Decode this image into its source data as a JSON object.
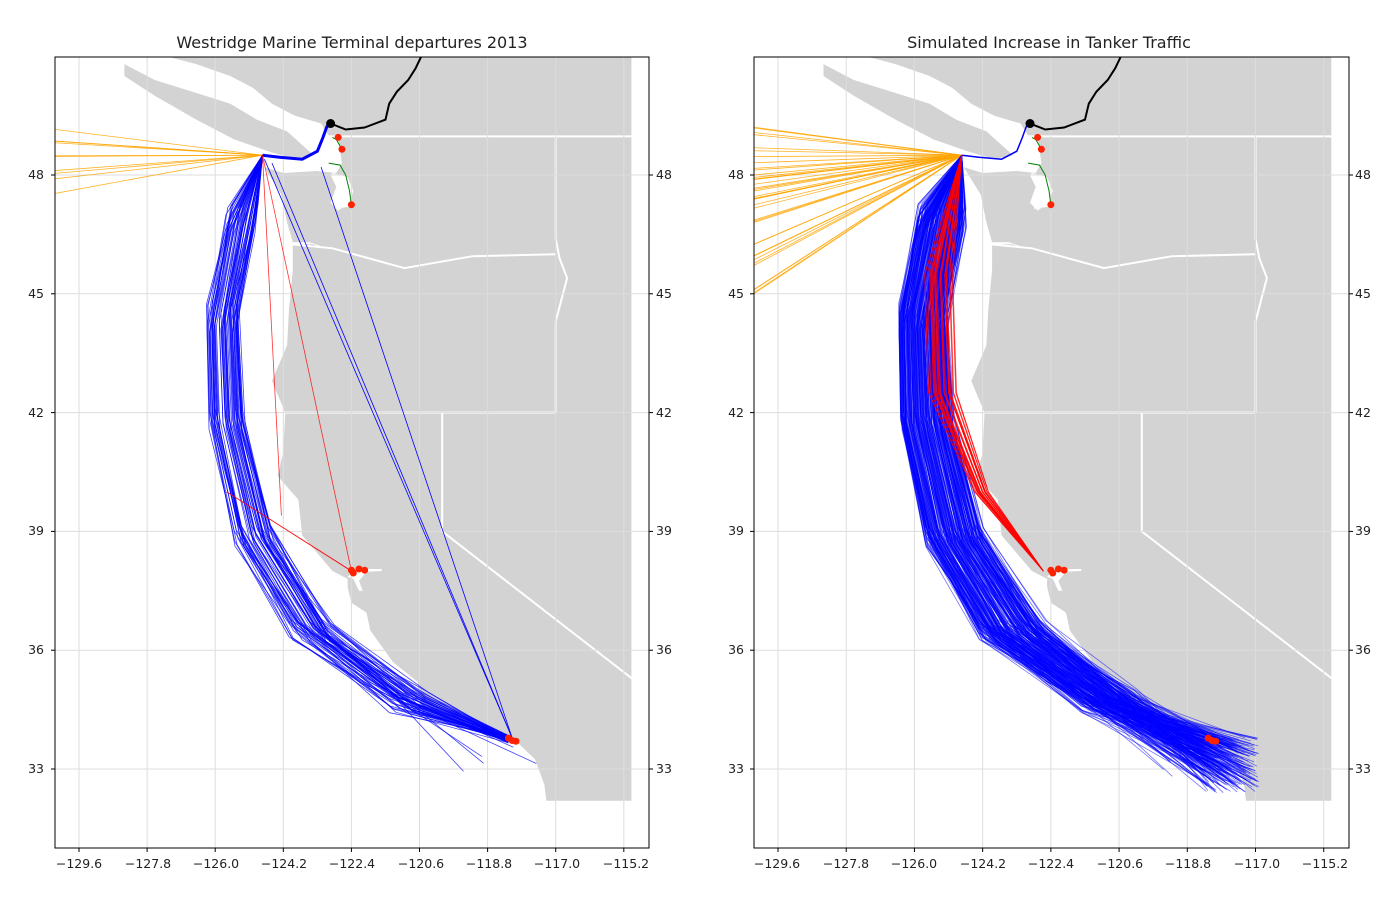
{
  "panels": [
    {
      "title": "Westridge Marine Terminal departures 2013",
      "x_ticks": [
        "−129.6",
        "−127.8",
        "−126.0",
        "−124.2",
        "−122.4",
        "−120.6",
        "−118.8",
        "−117.0",
        "−115.2"
      ],
      "y_ticks": [
        "48",
        "45",
        "42",
        "39",
        "36",
        "33"
      ]
    },
    {
      "title": "Simulated Increase in Tanker Traffic",
      "x_ticks": [
        "−129.6",
        "−127.8",
        "−126.0",
        "−124.2",
        "−122.4",
        "−120.6",
        "−118.8",
        "−117.0",
        "−115.2"
      ],
      "y_ticks": [
        "48",
        "45",
        "42",
        "39",
        "36",
        "33"
      ]
    }
  ],
  "map_extent": {
    "lon": [
      -130.3,
      -115.0
    ],
    "lat": [
      31.0,
      51.0
    ]
  },
  "colors": {
    "land": "#d3d3d3",
    "water": "#ffffff",
    "grid": "#dddddd",
    "route_southbound": "#0000ff",
    "route_bay_area": "#ff0000",
    "route_offshore": "#ffa500",
    "pipeline": "#000000",
    "route_puget": "#008000",
    "terminal_marker": "#ff2200",
    "origin_marker": "#000000"
  },
  "route_counts": {
    "panel_1_blue": 60,
    "panel_1_red": 4,
    "panel_1_orange": 10,
    "panel_2_blue": 260,
    "panel_2_red": 30,
    "panel_2_orange": 40
  }
}
